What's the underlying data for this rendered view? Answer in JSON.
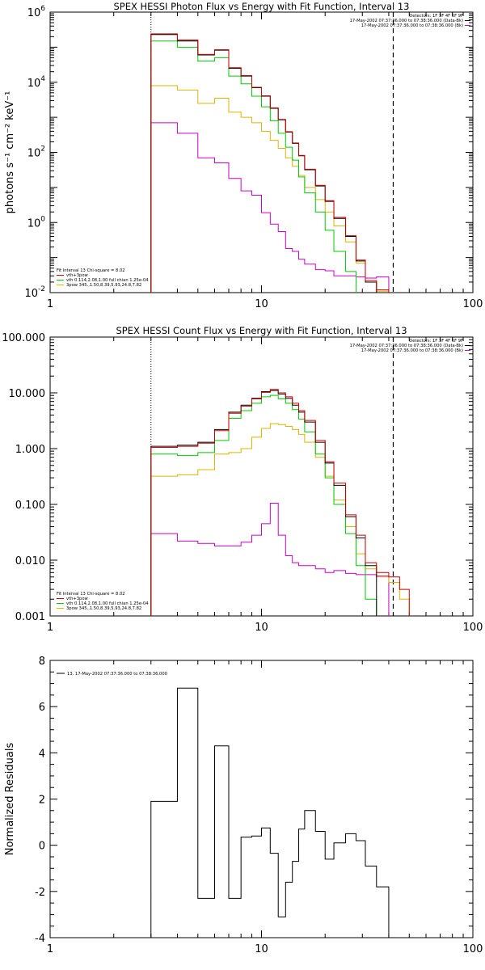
{
  "colors": {
    "total": "#cc0000",
    "data": "#000000",
    "vth": "#00cc00",
    "bpow": "#ddb400",
    "bk": "#cc00cc"
  },
  "chart_data": [
    {
      "type": "line",
      "title": "SPEX HESSI Photon Flux vs Energy with Fit Function, Interval 13",
      "xlabel": "",
      "ylabel": "photons s⁻¹ cm⁻² keV⁻¹",
      "xscale": "log",
      "yscale": "log",
      "xlim": [
        1,
        100
      ],
      "ylim": [
        0.01,
        1000000
      ],
      "xticks": [
        {
          "v": 1,
          "label": "1"
        },
        {
          "v": 10,
          "label": "10"
        },
        {
          "v": 100,
          "label": "100"
        }
      ],
      "yticks": [
        {
          "v": 0.01,
          "label": "10",
          "sup": "-2"
        },
        {
          "v": 1,
          "label": "10",
          "sup": "0"
        },
        {
          "v": 100,
          "label": "10",
          "sup": "2"
        },
        {
          "v": 10000,
          "label": "10",
          "sup": "4"
        },
        {
          "v": 1000000,
          "label": "10",
          "sup": "6"
        }
      ],
      "header": [
        {
          "text": "Detectors: 1F 3F 4F 6F 9F",
          "color": "#000000"
        },
        {
          "text": "17-May-2002 07:37:36.000 to 07:38:36.000 (Data-Bk)",
          "color": "#000000"
        },
        {
          "text": "17-May-2002 07:37:36.000 to 07:38:36.000 (Bk)",
          "color": "#cc00cc"
        }
      ],
      "legend_title": "Fit Interval 13   Chi-square = 8.02",
      "legend": [
        {
          "text": "vth+3pow",
          "color": "#cc0000"
        },
        {
          "text": "vth 0.114,2.08,1.00  full chian 1.25e-04",
          "color": "#00cc00"
        },
        {
          "text": "3pow 345.,1.50,8.39,5.93,24.8,7.82",
          "color": "#ddb400"
        }
      ],
      "vlines": [
        3,
        42
      ],
      "edges": [
        3,
        4,
        5,
        6,
        7,
        8,
        9,
        10,
        11,
        12,
        13,
        14,
        15,
        16,
        18,
        20,
        22,
        25,
        28,
        31,
        35,
        40,
        45,
        50
      ],
      "series": [
        {
          "key": "data",
          "color": "#000000",
          "values": [
            230000,
            150000,
            60000,
            82000,
            25000,
            15000,
            7000,
            4000,
            1800,
            850,
            380,
            180,
            80,
            32,
            11,
            4,
            1.3,
            0.4,
            0.08,
            0.02
          ]
        },
        {
          "key": "total",
          "color": "#cc0000",
          "values": [
            240000,
            160000,
            62000,
            85000,
            26000,
            15500,
            7200,
            4100,
            1850,
            870,
            390,
            185,
            82,
            33,
            11.5,
            4.2,
            1.4,
            0.42,
            0.085,
            0.022,
            0.012,
            0.006,
            0.006
          ]
        },
        {
          "key": "vth",
          "color": "#00cc00",
          "values": [
            150000,
            100000,
            40000,
            50000,
            15000,
            9000,
            4000,
            2000,
            800,
            350,
            140,
            60,
            20,
            7,
            2,
            0.6,
            0.15,
            0.04,
            0.009,
            0.006
          ]
        },
        {
          "key": "bpow",
          "color": "#ddb400",
          "values": [
            8000,
            6000,
            2500,
            3500,
            1400,
            1000,
            700,
            400,
            220,
            130,
            70,
            40,
            22,
            10,
            4.5,
            2,
            0.8,
            0.28,
            0.07,
            0.02,
            0.011,
            0.006,
            0.006
          ]
        },
        {
          "key": "bk",
          "color": "#cc00cc",
          "values": [
            700,
            350,
            70,
            50,
            18,
            8,
            6,
            1.9,
            0.9,
            0.55,
            0.18,
            0.15,
            0.09,
            0.065,
            0.045,
            0.042,
            0.03,
            0.03,
            0.028,
            0.026,
            0.028
          ]
        }
      ]
    },
    {
      "type": "line",
      "title": "SPEX HESSI Count Flux vs Energy with Fit Function, Interval 13",
      "xlabel": "",
      "ylabel": "",
      "xscale": "log",
      "yscale": "log",
      "xlim": [
        1,
        100
      ],
      "ylim": [
        0.001,
        100
      ],
      "xticks": [
        {
          "v": 1,
          "label": "1"
        },
        {
          "v": 10,
          "label": "10"
        },
        {
          "v": 100,
          "label": "100"
        }
      ],
      "yticks": [
        {
          "v": 0.001,
          "label": "0.001"
        },
        {
          "v": 0.01,
          "label": "0.010"
        },
        {
          "v": 0.1,
          "label": "0.100"
        },
        {
          "v": 1,
          "label": "1.000"
        },
        {
          "v": 10,
          "label": "10.000"
        },
        {
          "v": 100,
          "label": "100.000"
        }
      ],
      "header": [
        {
          "text": "Detectors: 1F 3F 4F 6F 9F",
          "color": "#000000"
        },
        {
          "text": "17-May-2002 07:37:36.000 to 07:38:36.000 (Data-Bk)",
          "color": "#000000"
        },
        {
          "text": "17-May-2002 07:37:36.000 to 07:38:36.000 (Bk)",
          "color": "#cc00cc"
        }
      ],
      "legend_title": "Fit Interval 13   Chi-square = 8.02",
      "legend": [
        {
          "text": "vth+3pow",
          "color": "#cc0000"
        },
        {
          "text": "vth 0.114,2.08,1.00  full chian 1.25e-04",
          "color": "#00cc00"
        },
        {
          "text": "3pow 345.,1.50,8.39,5.93,24.8,7.82",
          "color": "#ddb400"
        }
      ],
      "vlines": [
        3,
        42
      ],
      "edges": [
        3,
        4,
        5,
        6,
        7,
        8,
        9,
        10,
        11,
        12,
        13,
        14,
        15,
        16,
        18,
        20,
        22,
        25,
        28,
        31,
        35,
        40,
        45,
        50
      ],
      "series": [
        {
          "key": "data",
          "color": "#000000",
          "values": [
            1.1,
            1.15,
            1.3,
            2.2,
            4.5,
            6,
            8,
            10.5,
            11,
            9.5,
            8,
            6,
            4.5,
            3,
            1.3,
            0.55,
            0.22,
            0.06,
            0.025,
            0.008
          ]
        },
        {
          "key": "total",
          "color": "#cc0000",
          "values": [
            1.05,
            1.1,
            1.25,
            2.1,
            4.3,
            5.8,
            7.8,
            10.2,
            11.5,
            10,
            8.5,
            6.5,
            4.8,
            3.2,
            1.4,
            0.58,
            0.24,
            0.065,
            0.028,
            0.009,
            0.006,
            0.005,
            0.003
          ]
        },
        {
          "key": "vth",
          "color": "#00cc00",
          "values": [
            0.8,
            0.75,
            0.85,
            1.4,
            3.5,
            4.8,
            6.5,
            8.5,
            9,
            7.8,
            6.5,
            5,
            3.4,
            2,
            0.8,
            0.3,
            0.1,
            0.03,
            0.008,
            0.002
          ]
        },
        {
          "key": "bpow",
          "color": "#ddb400",
          "values": [
            0.32,
            0.34,
            0.42,
            0.8,
            0.85,
            1,
            1.6,
            2.3,
            2.8,
            2.7,
            2.5,
            2.2,
            1.8,
            1.3,
            0.7,
            0.32,
            0.12,
            0.04,
            0.013,
            0.007,
            0.005,
            0.004,
            0.002
          ]
        },
        {
          "key": "bk",
          "color": "#cc00cc",
          "values": [
            0.03,
            0.022,
            0.02,
            0.018,
            0.018,
            0.021,
            0.028,
            0.045,
            0.105,
            0.028,
            0.012,
            0.009,
            0.008,
            0.008,
            0.007,
            0.006,
            0.0065,
            0.0058,
            0.0055,
            0.0055,
            0.0052
          ]
        }
      ]
    },
    {
      "type": "line",
      "title": "",
      "xlabel": "",
      "ylabel": "Normalized Residuals",
      "xscale": "log",
      "yscale": "linear",
      "xlim": [
        1,
        100
      ],
      "ylim": [
        -4,
        8
      ],
      "xticks": [
        {
          "v": 1,
          "label": "1"
        },
        {
          "v": 10,
          "label": "10"
        },
        {
          "v": 100,
          "label": "100"
        }
      ],
      "yticks": [
        {
          "v": -4,
          "label": "-4"
        },
        {
          "v": -2,
          "label": "-2"
        },
        {
          "v": 0,
          "label": "0"
        },
        {
          "v": 2,
          "label": "2"
        },
        {
          "v": 4,
          "label": "4"
        },
        {
          "v": 6,
          "label": "6"
        },
        {
          "v": 8,
          "label": "8"
        }
      ],
      "legend": [
        {
          "text": "13. 17-May-2002 07:37:36.000 to 07:38:36.000",
          "color": "#000000"
        }
      ],
      "edges": [
        3,
        4,
        5,
        6,
        7,
        8,
        9,
        10,
        11,
        12,
        13,
        14,
        15,
        16,
        18,
        20,
        22,
        25,
        28,
        31,
        35,
        40
      ],
      "series": [
        {
          "key": "resid",
          "color": "#000000",
          "values": [
            1.9,
            6.8,
            -2.3,
            4.3,
            -2.3,
            0.35,
            0.4,
            0.75,
            -0.35,
            -3.1,
            -1.6,
            -0.7,
            0.7,
            1.5,
            0.6,
            -0.6,
            0.1,
            0.5,
            0.2,
            -0.9,
            -1.8
          ]
        }
      ]
    }
  ]
}
